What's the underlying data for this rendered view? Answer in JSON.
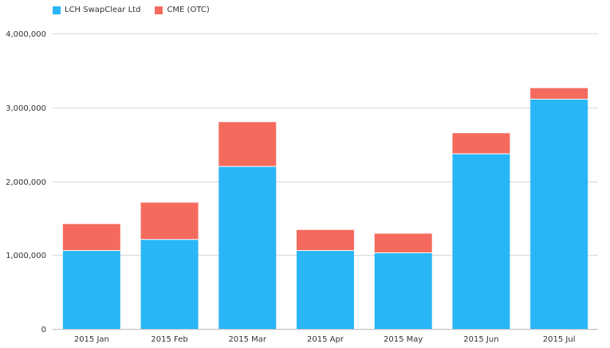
{
  "chart_data": {
    "type": "bar",
    "stacked": true,
    "categories": [
      "2015 Jan",
      "2015 Feb",
      "2015 Mar",
      "2015 Apr",
      "2015 May",
      "2015 Jun",
      "2015 Jul"
    ],
    "series": [
      {
        "name": "LCH SwapClear Ltd",
        "color": "#29b6f6",
        "values": [
          1060000,
          1210000,
          2200000,
          1060000,
          1030000,
          2370000,
          3110000
        ]
      },
      {
        "name": "CME (OTC)",
        "color": "#f46b5e",
        "values": [
          360000,
          500000,
          600000,
          280000,
          260000,
          280000,
          150000
        ]
      }
    ],
    "ylim": [
      0,
      4000000
    ],
    "yticks": [
      0,
      1000000,
      2000000,
      3000000,
      4000000
    ],
    "ytick_labels": [
      "0",
      "1,000,000",
      "2,000,000",
      "3,000,000",
      "4,000,000"
    ],
    "grid": true,
    "legend_position": "top-left"
  }
}
